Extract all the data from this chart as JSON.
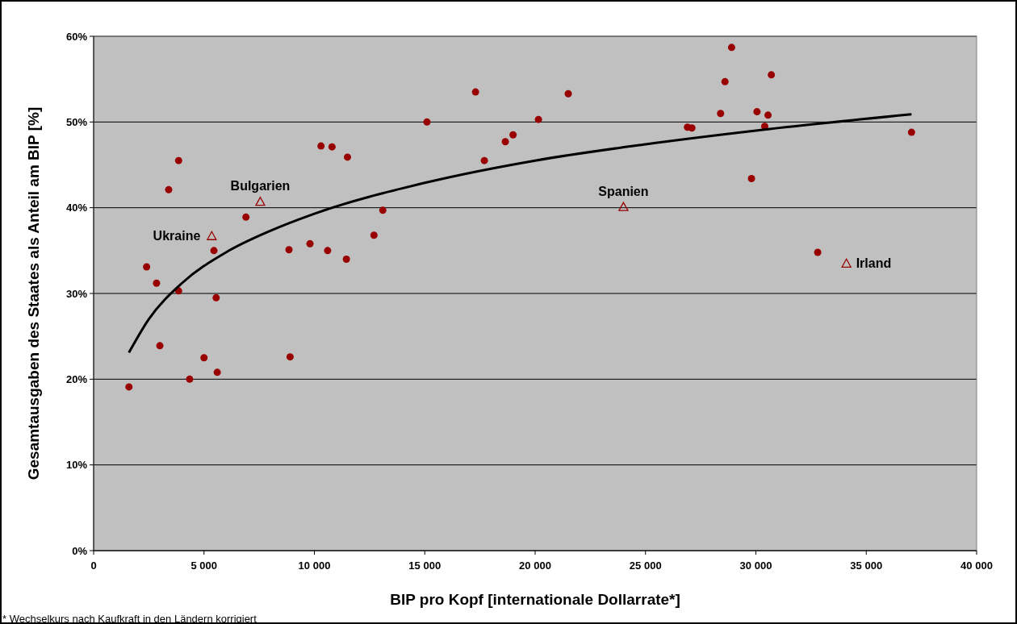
{
  "chart_data": {
    "type": "scatter",
    "xlabel": "BIP pro Kopf [internationale Dollarrate*]",
    "ylabel": "Gesamtausgaben des Staates als Anteil am BIP [%]",
    "xlim": [
      0,
      40000
    ],
    "xticks": [
      0,
      {
        "value": 5000,
        "label": "5 000"
      },
      {
        "value": 10000,
        "label": "10 000"
      },
      {
        "value": 15000,
        "label": "15 000"
      },
      {
        "value": 20000,
        "label": "20 000"
      },
      {
        "value": 25000,
        "label": "25 000"
      },
      {
        "value": 30000,
        "label": "30 000"
      },
      {
        "value": 35000,
        "label": "35 000"
      },
      {
        "value": 40000,
        "label": "40 000"
      }
    ],
    "ylim": [
      0,
      60
    ],
    "yticks": [
      {
        "value": 0,
        "label": "0%"
      },
      {
        "value": 10,
        "label": "10%"
      },
      {
        "value": 20,
        "label": "20%"
      },
      {
        "value": 30,
        "label": "30%"
      },
      {
        "value": 40,
        "label": "40%"
      },
      {
        "value": 50,
        "label": "50%"
      },
      {
        "value": 60,
        "label": "60%"
      }
    ],
    "grid": "y",
    "series": [
      {
        "marker": "circle",
        "color": "#990000",
        "x": [
          1600,
          2400,
          2850,
          3000,
          3400,
          3850,
          3850,
          4350,
          5000,
          5450,
          5550,
          5600,
          6900,
          8850,
          8900,
          9800,
          10300,
          10600,
          10800,
          11450,
          11500,
          12700,
          13100,
          15100,
          17300,
          17700,
          18650,
          19000,
          20150,
          21500,
          26900,
          27100,
          28400,
          28600,
          28900,
          29800,
          30050,
          30400,
          30550,
          30700,
          32800,
          37050
        ],
        "values": [
          19.1,
          33.1,
          31.2,
          23.9,
          42.1,
          45.5,
          30.3,
          20.0,
          22.5,
          35.0,
          29.5,
          20.8,
          38.9,
          35.1,
          22.6,
          35.8,
          47.2,
          35.0,
          47.1,
          34.0,
          45.9,
          36.8,
          39.7,
          50.0,
          53.5,
          45.5,
          47.7,
          48.5,
          50.3,
          53.3,
          49.4,
          49.3,
          51.0,
          54.7,
          58.7,
          43.4,
          51.2,
          49.5,
          50.8,
          55.5,
          34.8,
          48.8
        ]
      },
      {
        "marker": "triangle",
        "color": "#990000",
        "x": [
          5350,
          7550,
          24000,
          34100
        ],
        "values": [
          36.7,
          40.7,
          40.1,
          33.5
        ]
      },
      {
        "type": "line",
        "marker": "none",
        "color": "#000000",
        "x": [
          1600,
          2500,
          4000,
          6000,
          8000,
          10000,
          15000,
          20000,
          25000,
          30000,
          37050
        ],
        "values": [
          23.1,
          27.0,
          31.2,
          34.8,
          37.3,
          39.3,
          42.9,
          45.5,
          47.4,
          49.0,
          50.9
        ]
      }
    ],
    "annotations": [
      {
        "text": "Ukraine",
        "x": 5350,
        "y": 36.7
      },
      {
        "text": "Bulgarien",
        "x": 7550,
        "y": 40.7
      },
      {
        "text": "Spanien",
        "x": 24000,
        "y": 40.1
      },
      {
        "text": "Irland",
        "x": 34100,
        "y": 33.5
      },
      "* Wechselkurs nach Kaufkraft in den Ländern korrigiert"
    ]
  }
}
